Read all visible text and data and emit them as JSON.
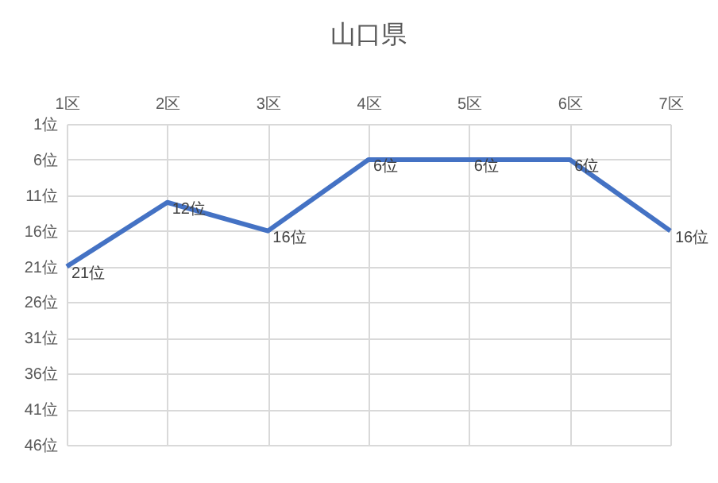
{
  "chart_data": {
    "type": "line",
    "title": "山口県",
    "categories": [
      "1区",
      "2区",
      "3区",
      "4区",
      "5区",
      "6区",
      "7区"
    ],
    "series": [
      {
        "color": "#4472c4",
        "values": [
          21,
          12,
          16,
          6,
          6,
          6,
          16
        ],
        "value_labels": [
          "21位",
          "12位",
          "16位",
          "6位",
          "6位",
          "6位",
          "16位"
        ]
      }
    ],
    "ylim": [
      46,
      1
    ],
    "yticks": [
      {
        "value": 1,
        "label": "1位"
      },
      {
        "value": 6,
        "label": "6位"
      },
      {
        "value": 11,
        "label": "11位"
      },
      {
        "value": 16,
        "label": "16位"
      },
      {
        "value": 21,
        "label": "21位"
      },
      {
        "value": 26,
        "label": "26位"
      },
      {
        "value": 31,
        "label": "31位"
      },
      {
        "value": 36,
        "label": "36位"
      },
      {
        "value": 41,
        "label": "41位"
      },
      {
        "value": 46,
        "label": "46位"
      }
    ],
    "grid": true,
    "marker": "none",
    "line_style": "solid"
  }
}
